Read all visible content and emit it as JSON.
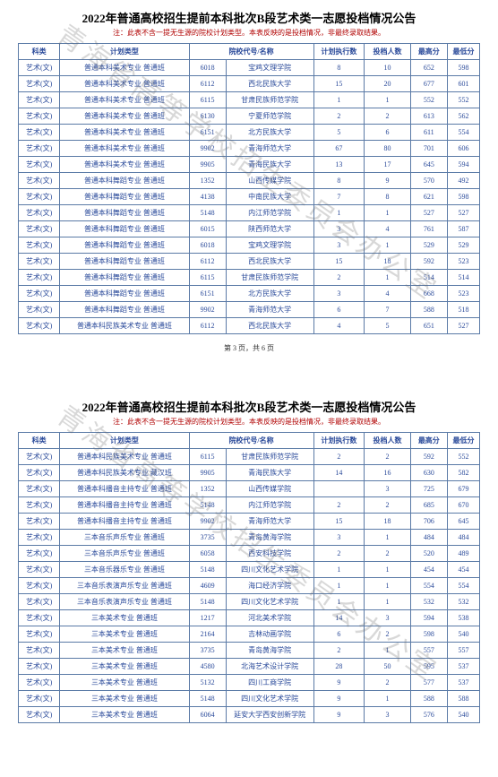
{
  "watermark_text": "青海省高等学校招生委员会办公室",
  "section1": {
    "title": "2022年普通高校招生提前本科批次B段艺术类一志愿投档情况公告",
    "subtitle": "注：此表不含一提无生源的院校计划类型。本表反映的是投档情况，非最终录取结果。",
    "pager": "第 3 页，共 6 页",
    "headers": {
      "subject": "科类",
      "plan": "计划类型",
      "code": "院校代号",
      "name": "院校代号/名称",
      "exec": "计划执行数",
      "admit": "投档人数",
      "high": "最高分",
      "low": "最低分"
    },
    "rows": [
      {
        "subject": "艺术(文)",
        "plan": "普通本科美术专业 普通班",
        "code": "6018",
        "name": "宝鸡文理学院",
        "exec": "8",
        "admit": "10",
        "high": "652",
        "low": "598"
      },
      {
        "subject": "艺术(文)",
        "plan": "普通本科美术专业 普通班",
        "code": "6112",
        "name": "西北民族大学",
        "exec": "15",
        "admit": "20",
        "high": "677",
        "low": "601"
      },
      {
        "subject": "艺术(文)",
        "plan": "普通本科美术专业 普通班",
        "code": "6115",
        "name": "甘肃民族师范学院",
        "exec": "1",
        "admit": "1",
        "high": "552",
        "low": "552"
      },
      {
        "subject": "艺术(文)",
        "plan": "普通本科美术专业 普通班",
        "code": "6130",
        "name": "宁夏师范学院",
        "exec": "2",
        "admit": "2",
        "high": "613",
        "low": "562"
      },
      {
        "subject": "艺术(文)",
        "plan": "普通本科美术专业 普通班",
        "code": "6151",
        "name": "北方民族大学",
        "exec": "5",
        "admit": "6",
        "high": "611",
        "low": "554"
      },
      {
        "subject": "艺术(文)",
        "plan": "普通本科美术专业 普通班",
        "code": "9902",
        "name": "青海师范大学",
        "exec": "67",
        "admit": "80",
        "high": "701",
        "low": "606"
      },
      {
        "subject": "艺术(文)",
        "plan": "普通本科美术专业 普通班",
        "code": "9905",
        "name": "青海民族大学",
        "exec": "13",
        "admit": "17",
        "high": "645",
        "low": "594"
      },
      {
        "subject": "艺术(文)",
        "plan": "普通本科舞蹈专业 普通班",
        "code": "1352",
        "name": "山西传媒学院",
        "exec": "8",
        "admit": "9",
        "high": "570",
        "low": "492"
      },
      {
        "subject": "艺术(文)",
        "plan": "普通本科舞蹈专业 普通班",
        "code": "4138",
        "name": "中南民族大学",
        "exec": "7",
        "admit": "8",
        "high": "621",
        "low": "598"
      },
      {
        "subject": "艺术(文)",
        "plan": "普通本科舞蹈专业 普通班",
        "code": "5148",
        "name": "内江师范学院",
        "exec": "1",
        "admit": "1",
        "high": "527",
        "low": "527"
      },
      {
        "subject": "艺术(文)",
        "plan": "普通本科舞蹈专业 普通班",
        "code": "6015",
        "name": "陕西师范大学",
        "exec": "3",
        "admit": "4",
        "high": "761",
        "low": "587"
      },
      {
        "subject": "艺术(文)",
        "plan": "普通本科舞蹈专业 普通班",
        "code": "6018",
        "name": "宝鸡文理学院",
        "exec": "3",
        "admit": "1",
        "high": "529",
        "low": "529"
      },
      {
        "subject": "艺术(文)",
        "plan": "普通本科舞蹈专业 普通班",
        "code": "6112",
        "name": "西北民族大学",
        "exec": "15",
        "admit": "18",
        "high": "592",
        "low": "523"
      },
      {
        "subject": "艺术(文)",
        "plan": "普通本科舞蹈专业 普通班",
        "code": "6115",
        "name": "甘肃民族师范学院",
        "exec": "2",
        "admit": "1",
        "high": "514",
        "low": "514"
      },
      {
        "subject": "艺术(文)",
        "plan": "普通本科舞蹈专业 普通班",
        "code": "6151",
        "name": "北方民族大学",
        "exec": "3",
        "admit": "4",
        "high": "668",
        "low": "523"
      },
      {
        "subject": "艺术(文)",
        "plan": "普通本科舞蹈专业 普通班",
        "code": "9902",
        "name": "青海师范大学",
        "exec": "6",
        "admit": "7",
        "high": "588",
        "low": "518"
      },
      {
        "subject": "艺术(文)",
        "plan": "普通本科民族美术专业 普通班",
        "code": "6112",
        "name": "西北民族大学",
        "exec": "4",
        "admit": "5",
        "high": "651",
        "low": "527"
      }
    ]
  },
  "section2": {
    "title": "2022年普通高校招生提前本科批次B段艺术类一志愿投档情况公告",
    "subtitle": "注：此表不含一提无生源的院校计划类型。本表反映的是投档情况，非最终录取结果。",
    "headers": {
      "subject": "科类",
      "plan": "计划类型",
      "code": "院校代号",
      "name": "院校代号/名称",
      "exec": "计划执行数",
      "admit": "投档人数",
      "high": "最高分",
      "low": "最低分"
    },
    "rows": [
      {
        "subject": "艺术(文)",
        "plan": "普通本科民族美术专业 普通班",
        "code": "6115",
        "name": "甘肃民族师范学院",
        "exec": "2",
        "admit": "2",
        "high": "592",
        "low": "552"
      },
      {
        "subject": "艺术(文)",
        "plan": "普通本科民族美术专业 藏汉班",
        "code": "9905",
        "name": "青海民族大学",
        "exec": "14",
        "admit": "16",
        "high": "630",
        "low": "582"
      },
      {
        "subject": "艺术(文)",
        "plan": "普通本科播音主持专业 普通班",
        "code": "1352",
        "name": "山西传媒学院",
        "exec": "",
        "admit": "3",
        "high": "725",
        "low": "679"
      },
      {
        "subject": "艺术(文)",
        "plan": "普通本科播音主持专业 普通班",
        "code": "5148",
        "name": "内江师范学院",
        "exec": "2",
        "admit": "2",
        "high": "685",
        "low": "670"
      },
      {
        "subject": "艺术(文)",
        "plan": "普通本科播音主持专业 普通班",
        "code": "9902",
        "name": "青海师范大学",
        "exec": "15",
        "admit": "18",
        "high": "706",
        "low": "645"
      },
      {
        "subject": "艺术(文)",
        "plan": "三本音乐声乐专业 普通班",
        "code": "3735",
        "name": "青岛黄海学院",
        "exec": "3",
        "admit": "1",
        "high": "484",
        "low": "484"
      },
      {
        "subject": "艺术(文)",
        "plan": "三本音乐声乐专业 普通班",
        "code": "6058",
        "name": "西安科技学院",
        "exec": "2",
        "admit": "2",
        "high": "520",
        "low": "489"
      },
      {
        "subject": "艺术(文)",
        "plan": "三本音乐器乐专业 普通班",
        "code": "5148",
        "name": "四川文化艺术学院",
        "exec": "1",
        "admit": "1",
        "high": "454",
        "low": "454"
      },
      {
        "subject": "艺术(文)",
        "plan": "三本音乐表演声乐专业 普通班",
        "code": "4609",
        "name": "海口经济学院",
        "exec": "1",
        "admit": "1",
        "high": "554",
        "low": "554"
      },
      {
        "subject": "艺术(文)",
        "plan": "三本音乐表演声乐专业 普通班",
        "code": "5148",
        "name": "四川文化艺术学院",
        "exec": "1",
        "admit": "1",
        "high": "532",
        "low": "532"
      },
      {
        "subject": "艺术(文)",
        "plan": "三本美术专业 普通班",
        "code": "1217",
        "name": "河北美术学院",
        "exec": "14",
        "admit": "3",
        "high": "594",
        "low": "538"
      },
      {
        "subject": "艺术(文)",
        "plan": "三本美术专业 普通班",
        "code": "2164",
        "name": "吉林动画学院",
        "exec": "6",
        "admit": "2",
        "high": "598",
        "low": "540"
      },
      {
        "subject": "艺术(文)",
        "plan": "三本美术专业 普通班",
        "code": "3735",
        "name": "青岛黄海学院",
        "exec": "2",
        "admit": "1",
        "high": "557",
        "low": "557"
      },
      {
        "subject": "艺术(文)",
        "plan": "三本美术专业 普通班",
        "code": "4580",
        "name": "北海艺术设计学院",
        "exec": "28",
        "admit": "50",
        "high": "595",
        "low": "537"
      },
      {
        "subject": "艺术(文)",
        "plan": "三本美术专业 普通班",
        "code": "5132",
        "name": "四川工商学院",
        "exec": "9",
        "admit": "2",
        "high": "577",
        "low": "537"
      },
      {
        "subject": "艺术(文)",
        "plan": "三本美术专业 普通班",
        "code": "5148",
        "name": "四川文化艺术学院",
        "exec": "9",
        "admit": "1",
        "high": "588",
        "low": "588"
      },
      {
        "subject": "艺术(文)",
        "plan": "三本美术专业 普通班",
        "code": "6064",
        "name": "延安大学西安创新学院",
        "exec": "9",
        "admit": "3",
        "high": "576",
        "low": "540"
      }
    ]
  }
}
